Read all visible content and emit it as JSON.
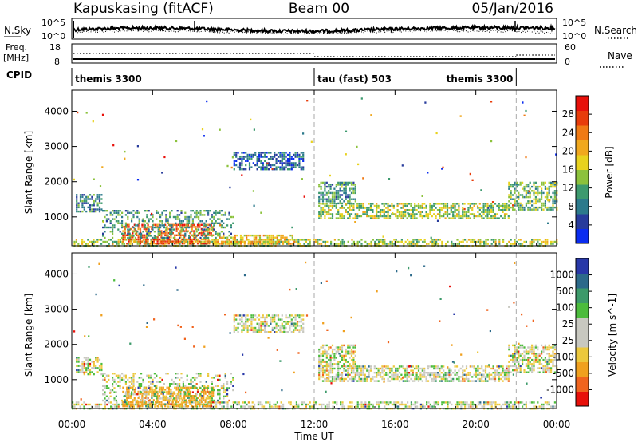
{
  "header": {
    "station": "Kapuskasing (fitACF)",
    "beam": "Beam 00",
    "date": "05/Jan/2016"
  },
  "sky_panel": {
    "left_label": "N.Sky",
    "right_label": "N.Search",
    "left_ticks": [
      "10^5",
      "10^0"
    ],
    "right_ticks": [
      "10^5",
      "10^0"
    ]
  },
  "freq_panel": {
    "left_label_1": "Freq.",
    "left_label_2": "[MHz]",
    "right_label": "Nave",
    "left_ticks": [
      "18",
      "8"
    ],
    "right_ticks": [
      "60",
      "0"
    ]
  },
  "cpid": {
    "label": "CPID",
    "segments": [
      {
        "name": "themis 3300",
        "start_hour": 0,
        "end_hour": 12
      },
      {
        "name": "tau (fast) 503",
        "start_hour": 12,
        "end_hour": 22
      },
      {
        "name": "themis 3300",
        "start_hour": 22,
        "end_hour": 24
      }
    ]
  },
  "time_axis": {
    "label": "Time UT",
    "ticks": [
      "00:00",
      "04:00",
      "08:00",
      "12:00",
      "16:00",
      "20:00",
      "00:00"
    ],
    "tick_hours": [
      0,
      4,
      8,
      12,
      16,
      20,
      24
    ],
    "range_hours": [
      0,
      24
    ]
  },
  "colors": {
    "power_scale": [
      "#0a2cf0",
      "#283c9c",
      "#2c7a8c",
      "#3d9a6e",
      "#8cc23c",
      "#e8d21e",
      "#f0a81e",
      "#f07a14",
      "#e83c0a",
      "#e8100a"
    ],
    "velocity_scale": [
      "#e8100a",
      "#f0641e",
      "#f0a01e",
      "#ecc83c",
      "#c8c8c0",
      "#c8c8c0",
      "#4cbc3c",
      "#3c9a6a",
      "#2c6a8a",
      "#2838a8"
    ]
  },
  "chart_data": [
    {
      "type": "heatmap",
      "title": "Power",
      "xlabel": "Time UT",
      "ylabel": "Slant Range [km]",
      "xlim": [
        0,
        24
      ],
      "ylim": [
        180,
        4600
      ],
      "yticks": [
        1000,
        2000,
        3000,
        4000
      ],
      "colorbar": {
        "label": "Power [dB]",
        "ticks": [
          "4",
          "8",
          "12",
          "16",
          "20",
          "24",
          "28"
        ],
        "range": [
          0,
          30
        ]
      },
      "regions": [
        {
          "t0": 0.0,
          "t1": 24.0,
          "r0": 200,
          "r1": 380,
          "value": 14
        },
        {
          "t0": 2.5,
          "t1": 7.0,
          "r0": 250,
          "r1": 800,
          "value": 24
        },
        {
          "t0": 1.5,
          "t1": 8.0,
          "r0": 400,
          "r1": 1200,
          "value": 10
        },
        {
          "t0": 7.0,
          "t1": 11.0,
          "r0": 250,
          "r1": 500,
          "value": 18
        },
        {
          "t0": 0.2,
          "t1": 1.5,
          "r0": 1150,
          "r1": 1650,
          "value": 8
        },
        {
          "t0": 8.0,
          "t1": 11.5,
          "r0": 2350,
          "r1": 2850,
          "value": 6
        },
        {
          "t0": 12.2,
          "t1": 21.6,
          "r0": 950,
          "r1": 1400,
          "value": 14
        },
        {
          "t0": 12.2,
          "t1": 14.0,
          "r0": 1400,
          "r1": 2000,
          "value": 10
        },
        {
          "t0": 21.6,
          "t1": 24.0,
          "r0": 1200,
          "r1": 2000,
          "value": 12
        }
      ]
    },
    {
      "type": "heatmap",
      "title": "Velocity",
      "xlabel": "Time UT",
      "ylabel": "Slant Range [km]",
      "xlim": [
        0,
        24
      ],
      "ylim": [
        180,
        4600
      ],
      "yticks": [
        1000,
        2000,
        3000,
        4000
      ],
      "colorbar": {
        "label": "Velocity [m s^-1]",
        "ticks": [
          "1000",
          "500",
          "100",
          "25",
          "-25",
          "-100",
          "-500",
          "-1000"
        ],
        "range": [
          -1200,
          1200
        ]
      },
      "regions": [
        {
          "t0": 0.0,
          "t1": 24.0,
          "r0": 200,
          "r1": 380,
          "value": 0
        },
        {
          "t0": 2.5,
          "t1": 7.0,
          "r0": 250,
          "r1": 800,
          "value": -150
        },
        {
          "t0": 1.5,
          "t1": 8.0,
          "r0": 400,
          "r1": 1200,
          "value": 0
        },
        {
          "t0": 0.2,
          "t1": 1.5,
          "r0": 1150,
          "r1": 1650,
          "value": 0
        },
        {
          "t0": 8.0,
          "t1": 11.5,
          "r0": 2350,
          "r1": 2850,
          "value": 0
        },
        {
          "t0": 12.2,
          "t1": 21.6,
          "r0": 950,
          "r1": 1400,
          "value": 0
        },
        {
          "t0": 12.2,
          "t1": 14.0,
          "r0": 1400,
          "r1": 2000,
          "value": 0
        },
        {
          "t0": 21.6,
          "t1": 24.0,
          "r0": 1200,
          "r1": 2000,
          "value": 0
        }
      ]
    }
  ]
}
